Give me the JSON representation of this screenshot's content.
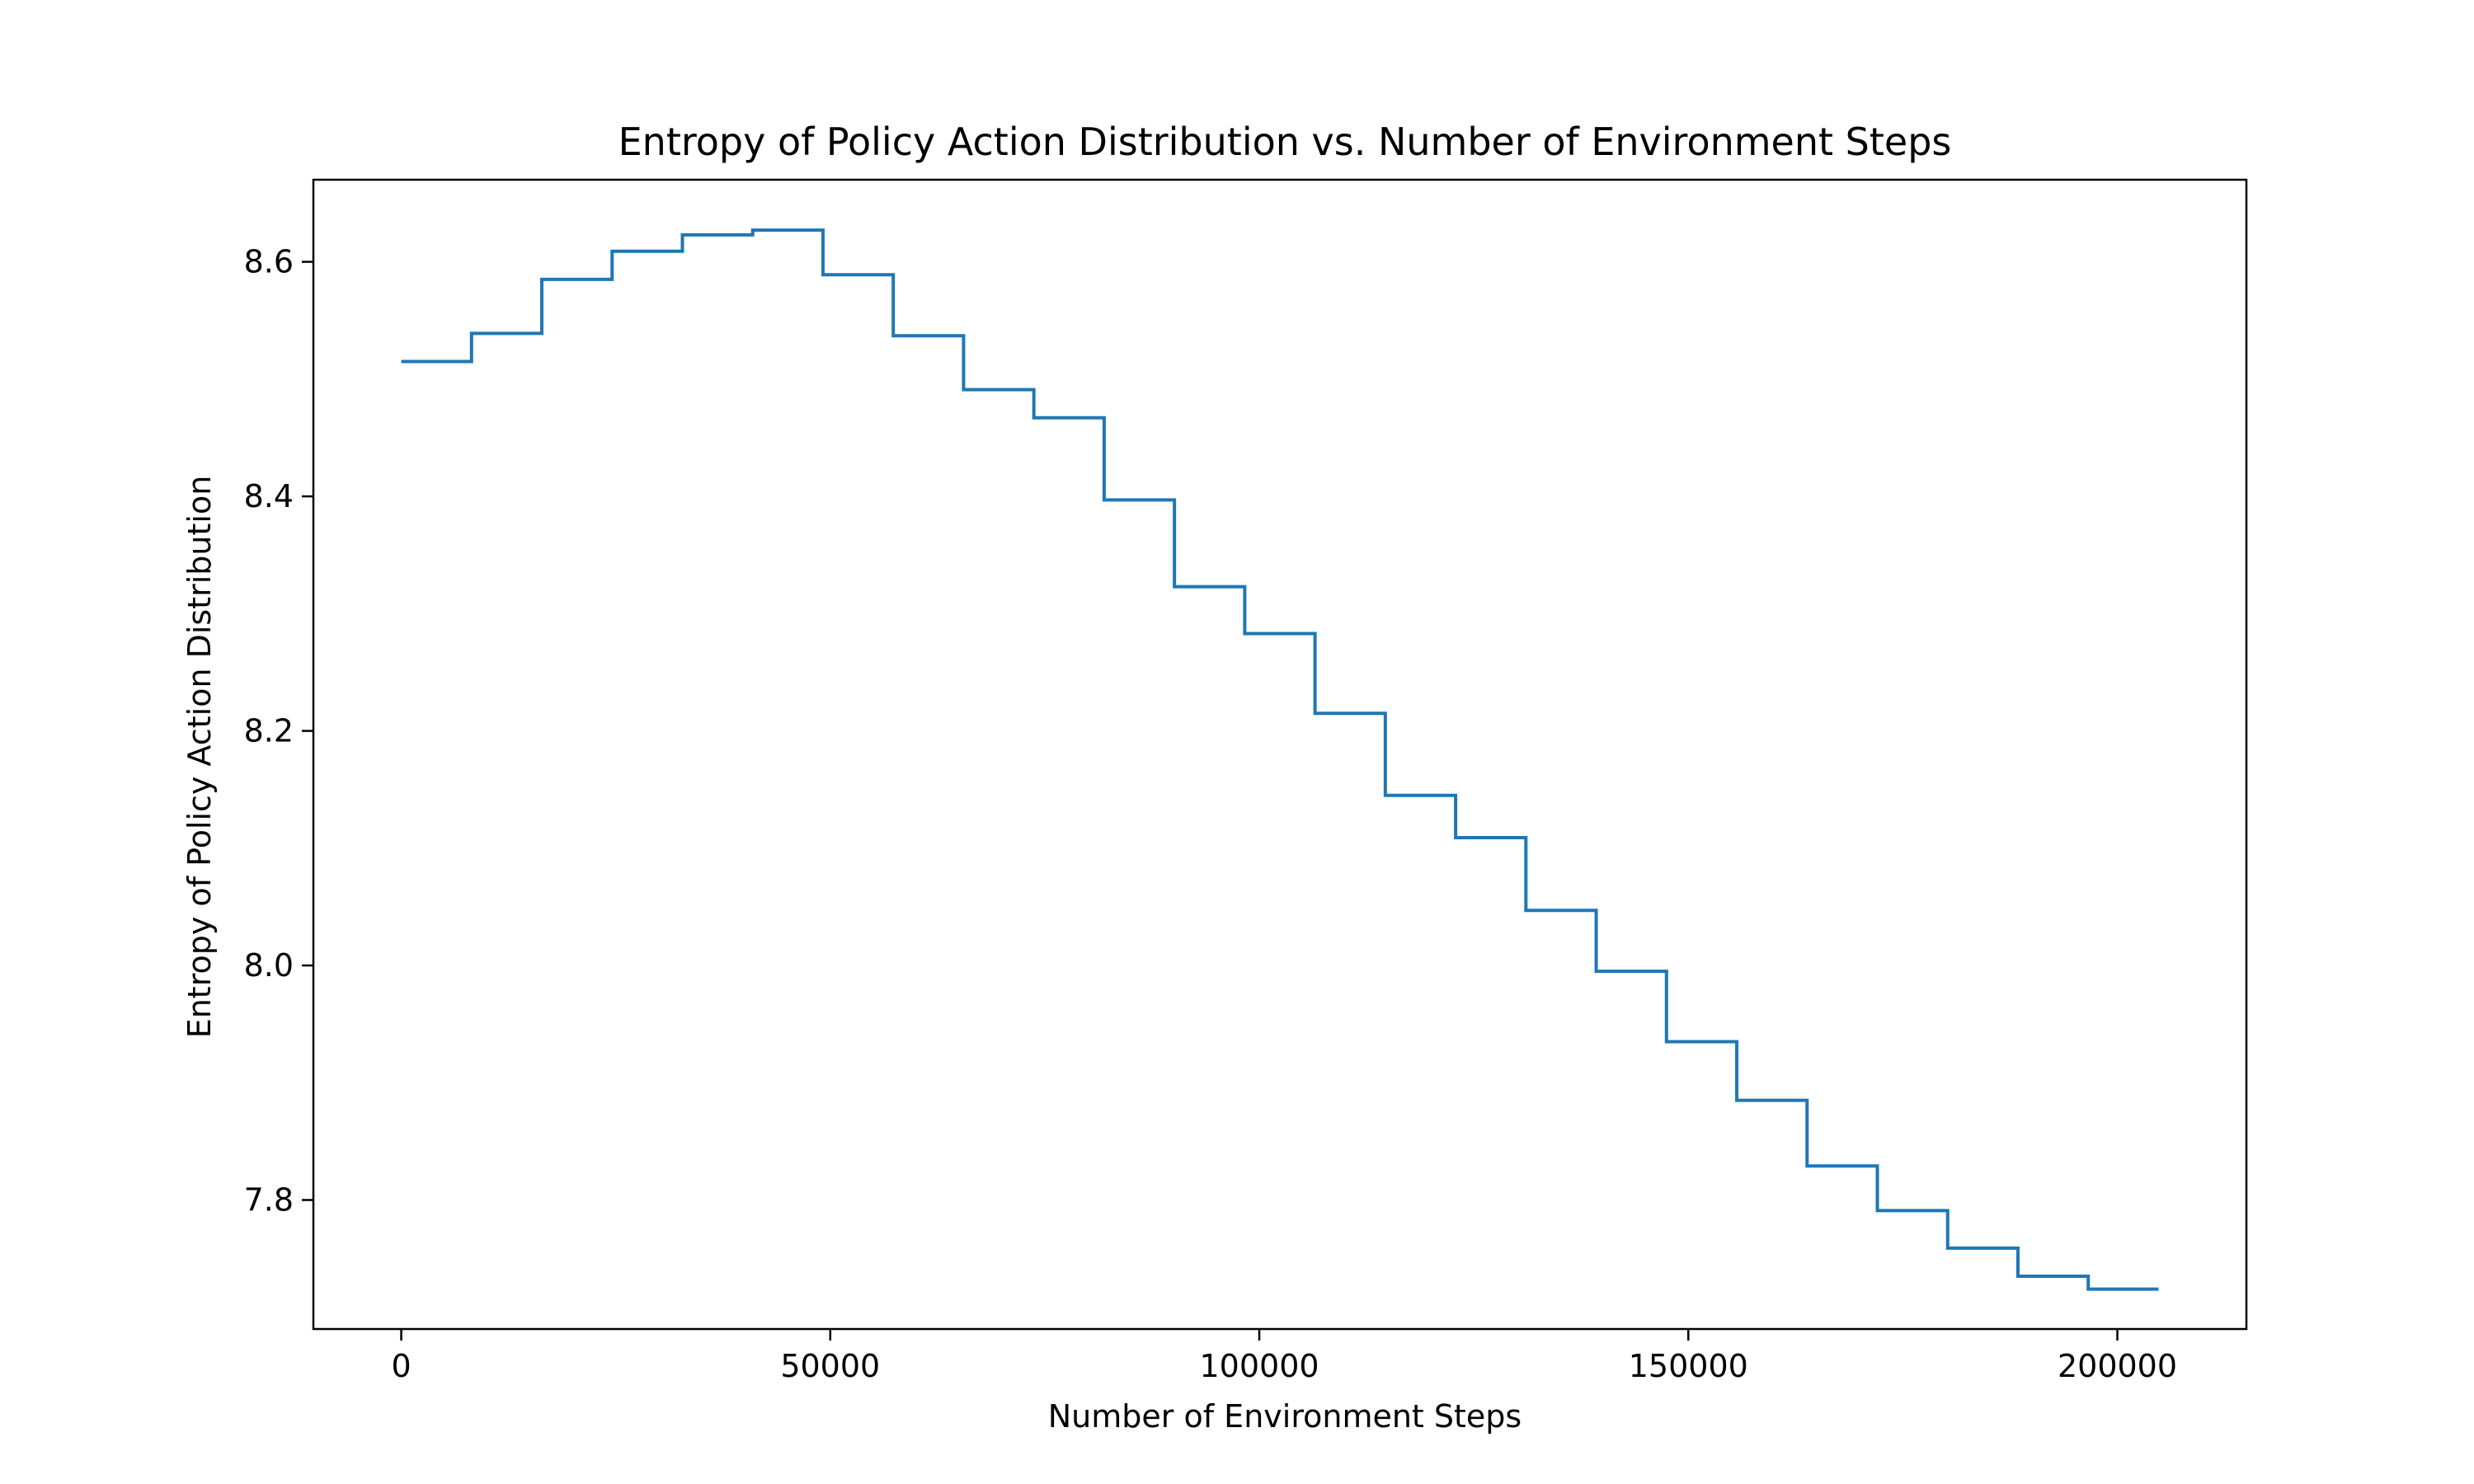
{
  "chart_data": {
    "type": "line",
    "style": "step-post",
    "title": "Entropy of Policy Action Distribution vs. Number of Environment Steps",
    "xlabel": "Number of Environment Steps",
    "ylabel": "Entropy of Policy Action Distribution",
    "xlim": [
      -10240,
      215040
    ],
    "ylim": [
      7.69,
      8.67
    ],
    "xticks": [
      0,
      50000,
      100000,
      150000,
      200000
    ],
    "xtick_labels": [
      "0",
      "50000",
      "100000",
      "150000",
      "200000"
    ],
    "yticks": [
      7.8,
      8.0,
      8.2,
      8.4,
      8.6
    ],
    "ytick_labels": [
      "7.8",
      "8.0",
      "8.2",
      "8.4",
      "8.6"
    ],
    "grid": false,
    "series": [
      {
        "color": "#1f77b4",
        "x": [
          0,
          8192,
          16384,
          24576,
          32768,
          40960,
          49152,
          57344,
          65536,
          73728,
          81920,
          90112,
          98304,
          106496,
          114688,
          122880,
          131072,
          139264,
          147456,
          155648,
          163840,
          172032,
          180224,
          188416,
          196608,
          204800
        ],
        "y": [
          8.515,
          8.539,
          8.585,
          8.609,
          8.623,
          8.627,
          8.589,
          8.537,
          8.491,
          8.467,
          8.397,
          8.323,
          8.283,
          8.215,
          8.145,
          8.109,
          8.047,
          7.995,
          7.935,
          7.885,
          7.829,
          7.791,
          7.759,
          7.735,
          7.724,
          7.724
        ]
      }
    ]
  }
}
